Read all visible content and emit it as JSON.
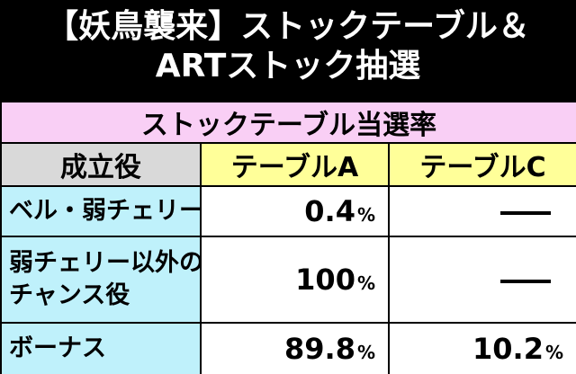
{
  "title": {
    "line1": "【妖鳥襲来】ストックテーブル＆",
    "line2": "ARTストック抽選"
  },
  "table": {
    "caption": "ストックテーブル当選率",
    "headers": {
      "role": "成立役",
      "col_a": "テーブルA",
      "col_c": "テーブルC"
    },
    "percent_sign": "%",
    "rows": [
      {
        "label_lines": [
          "ベル・弱チェリー"
        ],
        "a": "0.4",
        "c": null
      },
      {
        "label_lines": [
          "弱チェリー以外の",
          "チャンス役"
        ],
        "a": "100",
        "c": null
      },
      {
        "label_lines": [
          "ボーナス"
        ],
        "a": "89.8",
        "c": "10.2"
      }
    ]
  },
  "colors": {
    "background": "#000000",
    "caption_bg": "#f9cff5",
    "header_role_bg": "#d9d9d9",
    "header_col_bg": "#ffff99",
    "row_label_bg": "#bff1fb",
    "value_bg": "#ffffff"
  }
}
